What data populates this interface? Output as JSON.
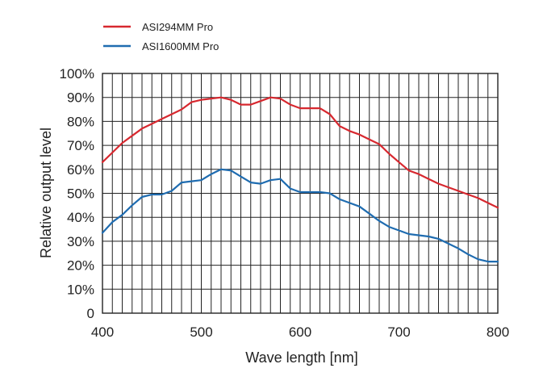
{
  "chart_data": {
    "type": "line",
    "title": "",
    "xlabel": "Wave length [nm]",
    "ylabel": "Relative output level",
    "xlim": [
      400,
      800
    ],
    "ylim": [
      0,
      100
    ],
    "x_ticks": [
      400,
      500,
      600,
      700,
      800
    ],
    "x_minor_step": 10,
    "y_ticks": [
      0,
      10,
      20,
      30,
      40,
      50,
      60,
      70,
      80,
      90,
      100
    ],
    "y_tick_labels": [
      "0",
      "10%",
      "20%",
      "30%",
      "40%",
      "50%",
      "60%",
      "70%",
      "80%",
      "90%",
      "100%"
    ],
    "grid": true,
    "legend_position": "top-left",
    "series": [
      {
        "name": "ASI294MM Pro",
        "color": "#d7282f",
        "x": [
          400,
          410,
          420,
          430,
          440,
          450,
          460,
          470,
          480,
          490,
          500,
          510,
          520,
          530,
          540,
          550,
          560,
          570,
          580,
          590,
          600,
          610,
          620,
          630,
          640,
          650,
          660,
          670,
          680,
          690,
          700,
          710,
          720,
          730,
          740,
          750,
          760,
          770,
          780,
          790,
          800
        ],
        "values": [
          63,
          67,
          71,
          74,
          77,
          79,
          81,
          83,
          85,
          88,
          89,
          89.5,
          90,
          89,
          87,
          87,
          88.5,
          90,
          89.5,
          87,
          85.5,
          85.5,
          85.5,
          83,
          78,
          76,
          74.5,
          72.5,
          70.5,
          66.5,
          63,
          59.5,
          58,
          56,
          54,
          52.5,
          51,
          49.5,
          48,
          46,
          44
        ]
      },
      {
        "name": "ASI1600MM Pro",
        "color": "#1f6cb0",
        "x": [
          400,
          410,
          420,
          430,
          440,
          450,
          460,
          470,
          480,
          490,
          500,
          510,
          520,
          530,
          540,
          550,
          560,
          570,
          580,
          590,
          600,
          610,
          620,
          630,
          640,
          650,
          660,
          670,
          680,
          690,
          700,
          710,
          720,
          730,
          740,
          750,
          760,
          770,
          780,
          790,
          800
        ],
        "values": [
          33.5,
          38,
          41,
          45,
          48.5,
          49.5,
          49.5,
          51,
          54.5,
          55,
          55.5,
          58,
          60,
          59.5,
          57,
          54.5,
          54,
          55.5,
          56,
          52,
          50.5,
          50.5,
          50.5,
          50,
          47.5,
          46,
          44.5,
          41.5,
          38.5,
          36,
          34.5,
          33,
          32.5,
          32,
          31,
          29,
          27,
          24.5,
          22.5,
          21.5,
          21.5
        ]
      }
    ]
  }
}
